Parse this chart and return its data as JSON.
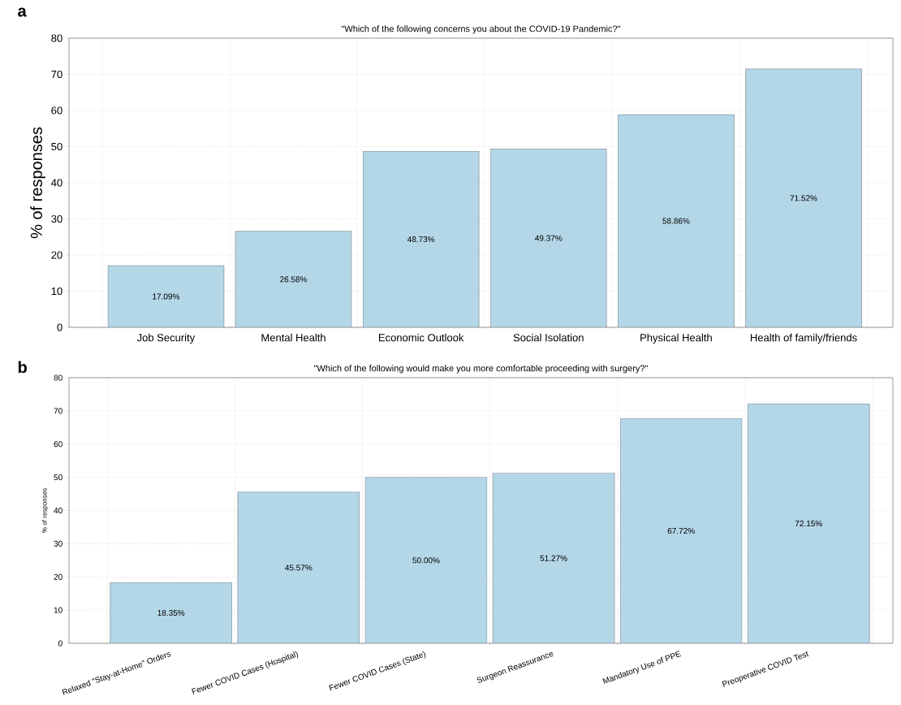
{
  "chart_data": [
    {
      "type": "bar",
      "title": "\"Which of the following concerns you about the COVID-19 Pandemic?\"",
      "ylabel": "% of responses",
      "categories": [
        "Job Security",
        "Mental Health",
        "Economic Outlook",
        "Social Isolation",
        "Physical Health",
        "Health of family/friends"
      ],
      "values": [
        17.09,
        26.58,
        48.73,
        49.37,
        58.86,
        71.52
      ],
      "value_labels": [
        "17.09%",
        "26.58%",
        "48.73%",
        "49.37%",
        "58.86%",
        "71.52%"
      ],
      "color": "#b4d7e8",
      "ylim": [
        0,
        80
      ],
      "yticks": [
        0,
        10,
        20,
        30,
        40,
        50,
        60,
        70,
        80
      ],
      "grid": true,
      "annotations": [
        "a"
      ]
    },
    {
      "type": "bar",
      "title": "\"Which of the following would make you more comfortable proceeding with surgery?\"",
      "ylabel": "% of responses",
      "categories": [
        "Relaxed \"Stay-at-Home\" Orders",
        "Fewer COVID Cases (Hospital)",
        "Fewer COVID Cases (State)",
        "Surgeon Reassurance",
        "Mandatory Use of PPE",
        "Preoperative COVID Test"
      ],
      "values": [
        18.35,
        45.57,
        50.0,
        51.27,
        67.72,
        72.15
      ],
      "value_labels": [
        "18.35%",
        "45.57%",
        "50.00%",
        "51.27%",
        "67.72%",
        "72.15%"
      ],
      "color": "#b4d7e8",
      "ylim": [
        0,
        80
      ],
      "yticks": [
        0,
        10,
        20,
        30,
        40,
        50,
        60,
        70,
        80
      ],
      "grid": true,
      "annotations": [
        "b"
      ]
    }
  ]
}
